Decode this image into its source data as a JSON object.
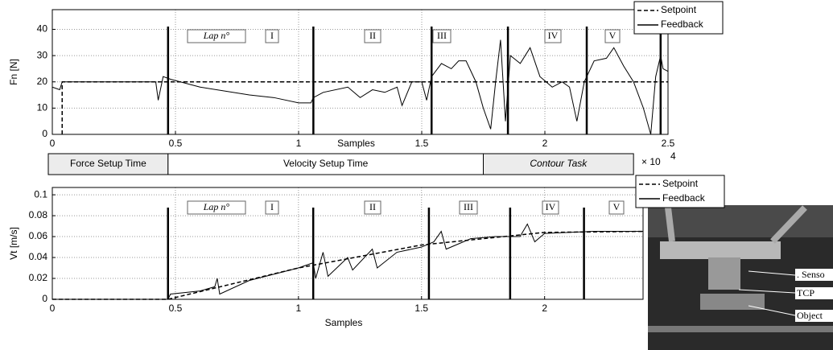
{
  "chart_data": [
    {
      "type": "line",
      "xlabel": "Samples",
      "ylabel": "Fn [N]",
      "xlim": [
        0,
        2.5
      ],
      "ylim": [
        0,
        47.5
      ],
      "xticks": [
        0,
        0.5,
        1,
        1.5,
        2,
        2.5
      ],
      "yticks": [
        0,
        10,
        20,
        30,
        40
      ],
      "grid": true,
      "legend": "upper right",
      "x_multiplier": {
        "base": "× 10",
        "exponent": "4"
      },
      "lap_label": "Lap n°",
      "laps": [
        "I",
        "II",
        "III",
        "IV",
        "V"
      ],
      "lap_lines": [
        0.47,
        1.06,
        1.54,
        1.85,
        2.17,
        2.47
      ],
      "series": [
        {
          "name": "Setpoint",
          "color": "#000000",
          "linestyle": "dashed",
          "x": [
            0.04,
            0.04,
            2.5
          ],
          "values": [
            0,
            20,
            20
          ]
        },
        {
          "name": "Feedback",
          "color": "#000000",
          "linestyle": "solid",
          "x": [
            0,
            0.03,
            0.04,
            0.1,
            0.3,
            0.42,
            0.43,
            0.45,
            0.48,
            0.6,
            0.8,
            0.9,
            1.0,
            1.05,
            1.06,
            1.1,
            1.2,
            1.25,
            1.3,
            1.35,
            1.4,
            1.42,
            1.46,
            1.5,
            1.52,
            1.54,
            1.58,
            1.62,
            1.65,
            1.68,
            1.72,
            1.75,
            1.78,
            1.8,
            1.82,
            1.84,
            1.86,
            1.9,
            1.94,
            1.98,
            2.03,
            2.07,
            2.1,
            2.13,
            2.16,
            2.2,
            2.25,
            2.28,
            2.32,
            2.36,
            2.4,
            2.43,
            2.45,
            2.47,
            2.48,
            2.5
          ],
          "values": [
            18,
            17,
            20,
            20,
            20,
            20,
            13,
            22,
            21,
            18,
            15,
            14,
            12,
            12,
            14,
            16,
            18,
            14,
            17,
            16,
            18,
            11,
            20,
            20,
            13,
            22,
            27,
            25,
            28,
            28,
            20,
            10,
            2,
            20,
            36,
            5,
            30,
            27,
            33,
            22,
            18,
            20,
            18,
            5,
            20,
            28,
            29,
            33,
            26,
            20,
            10,
            0,
            22,
            30,
            25,
            24
          ]
        }
      ]
    },
    {
      "type": "line",
      "xlabel": "Samples",
      "ylabel": "Vt [m/s]",
      "xlim": [
        0,
        2.4
      ],
      "ylim": [
        0,
        0.107
      ],
      "xticks": [
        0,
        0.5,
        1,
        1.5,
        2
      ],
      "yticks": [
        0,
        0.02,
        0.04,
        0.06,
        0.08,
        0.1
      ],
      "grid": true,
      "legend": "upper right",
      "lap_label": "Lap n°",
      "laps": [
        "I",
        "II",
        "III",
        "IV",
        "V"
      ],
      "lap_lines": [
        0.47,
        1.06,
        1.53,
        1.86,
        2.16
      ],
      "series": [
        {
          "name": "Setpoint",
          "color": "#000000",
          "linestyle": "dashed",
          "x": [
            0,
            0.47,
            1.0,
            1.5,
            2.0,
            2.4
          ],
          "values": [
            0,
            0,
            0.03,
            0.052,
            0.064,
            0.065
          ]
        },
        {
          "name": "Feedback",
          "color": "#000000",
          "linestyle": "solid",
          "x": [
            0,
            0.47,
            0.48,
            0.6,
            0.66,
            0.67,
            0.68,
            0.8,
            1.0,
            1.06,
            1.07,
            1.1,
            1.12,
            1.2,
            1.22,
            1.3,
            1.32,
            1.4,
            1.5,
            1.55,
            1.58,
            1.6,
            1.7,
            1.8,
            1.9,
            1.93,
            1.96,
            2.0,
            2.2,
            2.4
          ],
          "values": [
            0,
            0,
            0.005,
            0.008,
            0.012,
            0.02,
            0.005,
            0.018,
            0.03,
            0.035,
            0.02,
            0.045,
            0.022,
            0.04,
            0.028,
            0.048,
            0.03,
            0.045,
            0.05,
            0.055,
            0.065,
            0.048,
            0.058,
            0.06,
            0.06,
            0.072,
            0.055,
            0.063,
            0.065,
            0.065
          ]
        }
      ]
    }
  ],
  "timeline": {
    "phases": [
      {
        "label": "Force Setup Time",
        "start": 0,
        "end": 0.47
      },
      {
        "label": "Velocity Setup Time",
        "start": 0.47,
        "end": 1.75
      },
      {
        "label": "Contour Task",
        "start": 1.75,
        "end": 2.36
      }
    ]
  },
  "photo": {
    "labels": [
      ". Senso",
      "TCP",
      "Object"
    ]
  }
}
